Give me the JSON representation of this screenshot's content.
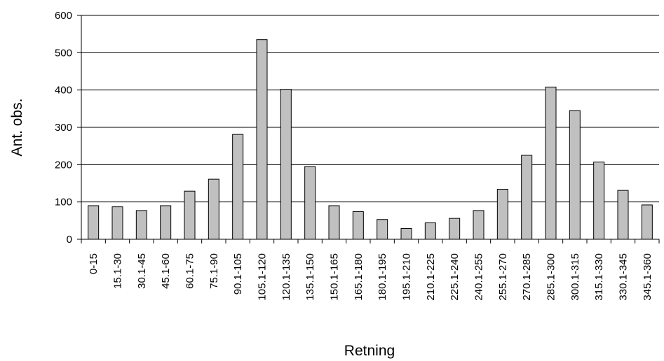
{
  "chart_data": {
    "type": "bar",
    "xlabel": "Retning",
    "ylabel": "Ant. obs.",
    "ylim": [
      0,
      600
    ],
    "yticks": [
      0,
      100,
      200,
      300,
      400,
      500,
      600
    ],
    "ytick_labels": [
      "0",
      "100",
      "200",
      "300",
      "400",
      "500",
      "600"
    ],
    "grid": "horizontal",
    "categories": [
      "0-15",
      "15.1-30",
      "30.1-45",
      "45.1-60",
      "60.1-75",
      "75.1-90",
      "90.1-105",
      "105.1-120",
      "120.1-135",
      "135.1-150",
      "150.1-165",
      "165.1-180",
      "180.1-195",
      "195.1-210",
      "210.1-225",
      "225.1-240",
      "240.1-255",
      "255.1-270",
      "270.1-285",
      "285.1-300",
      "300.1-315",
      "315.1-330",
      "330.1-345",
      "345.1-360"
    ],
    "values": [
      90,
      87,
      77,
      90,
      129,
      161,
      281,
      535,
      402,
      195,
      90,
      74,
      53,
      29,
      44,
      56,
      77,
      134,
      225,
      408,
      345,
      207,
      131,
      92
    ],
    "colors": {
      "bar_fill": "#c0c0c0",
      "bar_stroke": "#000000",
      "grid": "#000000"
    }
  }
}
